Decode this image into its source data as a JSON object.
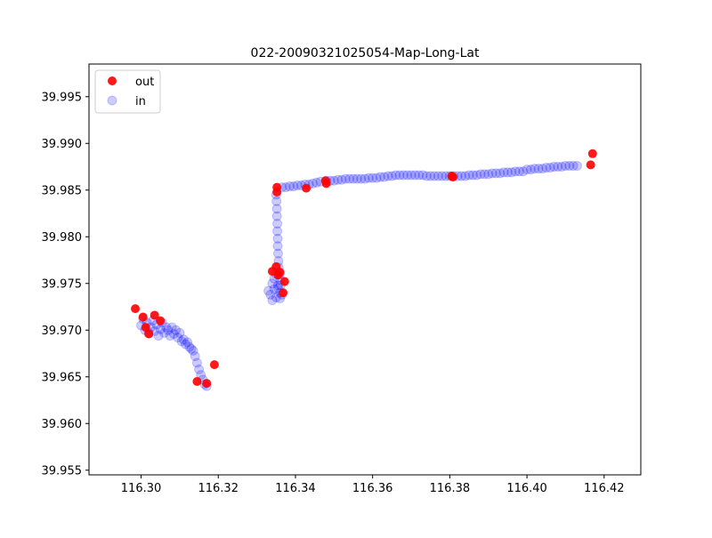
{
  "chart_data": {
    "type": "scatter",
    "title": "022-20090321025054-Map-Long-Lat",
    "xlabel": "",
    "ylabel": "",
    "xlim": [
      116.2865,
      116.4295
    ],
    "ylim": [
      39.9545,
      39.9985
    ],
    "x_ticks": [
      116.3,
      116.32,
      116.34,
      116.36,
      116.38,
      116.4,
      116.42
    ],
    "x_tick_labels": [
      "116.30",
      "116.32",
      "116.34",
      "116.36",
      "116.38",
      "116.40",
      "116.42"
    ],
    "y_ticks": [
      39.955,
      39.96,
      39.965,
      39.97,
      39.975,
      39.98,
      39.985,
      39.99,
      39.995
    ],
    "y_tick_labels": [
      "39.955",
      "39.960",
      "39.965",
      "39.970",
      "39.975",
      "39.980",
      "39.985",
      "39.990",
      "39.995"
    ],
    "grid": false,
    "legend": {
      "position": "upper-left",
      "entries": [
        "out",
        "in"
      ]
    },
    "series": [
      {
        "name": "in",
        "color": "#0000ff",
        "alpha": 0.2,
        "x": [
          116.335,
          116.3351,
          116.3352,
          116.3352,
          116.3353,
          116.3353,
          116.3354,
          116.3354,
          116.3355,
          116.3356,
          116.3357,
          116.3359,
          116.3361,
          116.3362,
          116.3365,
          116.3375,
          116.3385,
          116.3395,
          116.3405,
          116.3415,
          116.3425,
          116.3435,
          116.3445,
          116.3455,
          116.3465,
          116.348,
          116.349,
          116.35,
          116.351,
          116.352,
          116.353,
          116.354,
          116.355,
          116.356,
          116.357,
          116.358,
          116.359,
          116.36,
          116.361,
          116.362,
          116.363,
          116.364,
          116.365,
          116.366,
          116.367,
          116.368,
          116.369,
          116.37,
          116.371,
          116.372,
          116.373,
          116.374,
          116.375,
          116.376,
          116.377,
          116.378,
          116.379,
          116.38,
          116.381,
          116.382,
          116.383,
          116.384,
          116.385,
          116.386,
          116.387,
          116.388,
          116.389,
          116.39,
          116.391,
          116.392,
          116.393,
          116.394,
          116.395,
          116.396,
          116.397,
          116.398,
          116.399,
          116.4,
          116.401,
          116.402,
          116.403,
          116.404,
          116.405,
          116.406,
          116.407,
          116.408,
          116.409,
          116.41,
          116.411,
          116.412,
          116.413,
          116.3,
          116.3005,
          116.301,
          116.3015,
          116.302,
          116.3025,
          116.303,
          116.3035,
          116.304,
          116.3045,
          116.305,
          116.3055,
          116.306,
          116.3065,
          116.307,
          116.3075,
          116.308,
          116.3085,
          116.309,
          116.3095,
          116.31,
          116.3105,
          116.311,
          116.3115,
          116.312,
          116.3125,
          116.313,
          116.3135,
          116.314,
          116.3145,
          116.315,
          116.3155,
          116.316,
          116.3165,
          116.317,
          116.333,
          116.3335,
          116.334,
          116.3345,
          116.335,
          116.3355,
          116.336,
          116.334,
          116.3345,
          116.335,
          116.3355,
          116.336,
          116.3365
        ],
        "y": [
          39.9845,
          39.9838,
          39.983,
          39.9822,
          39.9814,
          39.9806,
          39.9798,
          39.979,
          39.9782,
          39.9774,
          39.9767,
          39.976,
          39.9754,
          39.9748,
          39.9853,
          39.9853,
          39.9854,
          39.9854,
          39.9855,
          39.9855,
          39.9856,
          39.9856,
          39.9857,
          39.9858,
          39.9859,
          39.986,
          39.986,
          39.986,
          39.9861,
          39.9861,
          39.9862,
          39.9862,
          39.9862,
          39.9862,
          39.9862,
          39.9862,
          39.9863,
          39.9863,
          39.9863,
          39.9864,
          39.9864,
          39.9865,
          39.9865,
          39.9866,
          39.9866,
          39.9866,
          39.9866,
          39.9866,
          39.9866,
          39.9866,
          39.9866,
          39.9865,
          39.9865,
          39.9865,
          39.9865,
          39.9865,
          39.9865,
          39.9865,
          39.9865,
          39.9865,
          39.9865,
          39.9865,
          39.9866,
          39.9866,
          39.9866,
          39.9867,
          39.9867,
          39.9867,
          39.9868,
          39.9868,
          39.9868,
          39.9869,
          39.9869,
          39.9869,
          39.987,
          39.987,
          39.987,
          39.9872,
          39.9872,
          39.9873,
          39.9873,
          39.9873,
          39.9874,
          39.9874,
          39.9875,
          39.9875,
          39.9875,
          39.9876,
          39.9876,
          39.9876,
          39.9876,
          39.9705,
          39.9712,
          39.97,
          39.9708,
          39.9697,
          39.9703,
          39.971,
          39.9699,
          39.9706,
          39.9694,
          39.9701,
          39.9708,
          39.9697,
          39.9703,
          39.97,
          39.9694,
          39.9703,
          39.9696,
          39.97,
          39.9692,
          39.9697,
          39.9688,
          39.969,
          39.9685,
          39.9687,
          39.9682,
          39.968,
          39.9678,
          39.9672,
          39.9665,
          39.9658,
          39.9652,
          39.9647,
          39.9642,
          39.964,
          39.9742,
          39.9738,
          39.975,
          39.9744,
          39.9735,
          39.9748,
          39.974,
          39.9732,
          39.9755,
          39.976,
          39.9745,
          39.9734,
          39.9738
        ]
      },
      {
        "name": "out",
        "color": "#ff0000",
        "alpha": 0.9,
        "x": [
          116.2985,
          116.3005,
          116.3012,
          116.302,
          116.3035,
          116.305,
          116.3145,
          116.317,
          116.319,
          116.334,
          116.335,
          116.3355,
          116.336,
          116.3368,
          116.3372,
          116.3352,
          116.3352,
          116.3428,
          116.3478,
          116.348,
          116.3805,
          116.3808,
          116.4165,
          116.417
        ],
        "y": [
          39.9723,
          39.9714,
          39.9703,
          39.9696,
          39.9716,
          39.971,
          39.9645,
          39.9643,
          39.9663,
          39.9763,
          39.9768,
          39.9759,
          39.9762,
          39.974,
          39.9752,
          39.9853,
          39.9848,
          39.9852,
          39.986,
          39.9857,
          39.9865,
          39.9864,
          39.9877,
          39.9889
        ]
      }
    ]
  }
}
